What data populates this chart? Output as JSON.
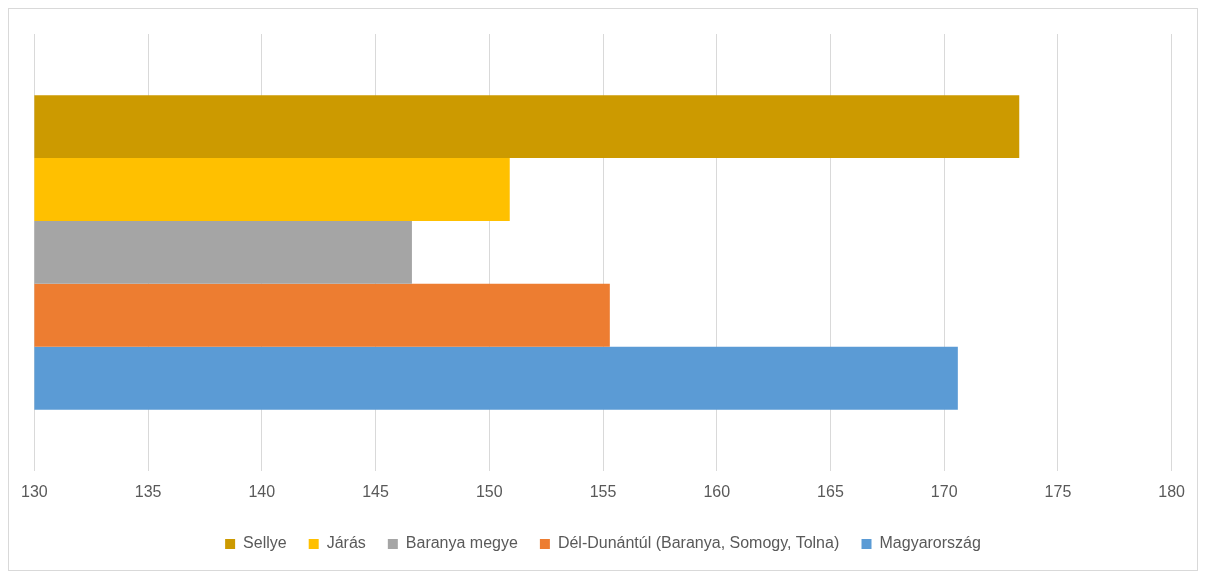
{
  "chart_data": {
    "type": "bar",
    "orientation": "horizontal",
    "categories": [
      null
    ],
    "series": [
      {
        "name": "Sellye",
        "color": "#cc9a00",
        "values": [
          173.3
        ]
      },
      {
        "name": "Járás",
        "color": "#ffc000",
        "values": [
          150.9
        ]
      },
      {
        "name": "Baranya megye",
        "color": "#a5a5a5",
        "values": [
          146.6
        ]
      },
      {
        "name": "Dél-Dunántúl (Baranya, Somogy, Tolna)",
        "color": "#ed7d31",
        "values": [
          155.3
        ]
      },
      {
        "name": "Magyarország",
        "color": "#5b9bd5",
        "values": [
          170.6
        ]
      }
    ],
    "xlim": [
      130,
      180
    ],
    "xticks": [
      130,
      135,
      140,
      145,
      150,
      155,
      160,
      165,
      170,
      175,
      180
    ],
    "grid": "x",
    "legend": "bottom"
  }
}
